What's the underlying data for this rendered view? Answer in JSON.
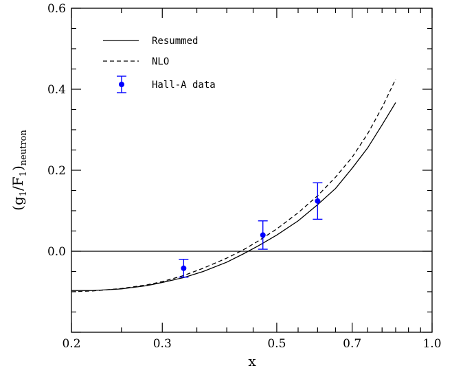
{
  "chart_data": {
    "type": "line",
    "xlabel": "x",
    "ylabel": "(g1/F1)neutron",
    "ylabel_parts": {
      "open": "(g",
      "sub1": "1",
      "slash": "/F",
      "sub2": "1",
      "close": ")",
      "sub3": "neutron"
    },
    "xscale": "log",
    "xlim": [
      0.2,
      1.0
    ],
    "ylim": [
      -0.2,
      0.6
    ],
    "x_ticks": [
      {
        "value": 0.2,
        "label": "0.2"
      },
      {
        "value": 0.3,
        "label": "0.3"
      },
      {
        "value": 0.5,
        "label": "0.5"
      },
      {
        "value": 0.7,
        "label": "0.7"
      },
      {
        "value": 1.0,
        "label": "1.0"
      }
    ],
    "y_ticks": [
      {
        "value": 0.0,
        "label": "0.0"
      },
      {
        "value": 0.2,
        "label": "0.2"
      },
      {
        "value": 0.4,
        "label": "0.4"
      },
      {
        "value": 0.6,
        "label": "0.6"
      }
    ],
    "reference_line": {
      "y": 0.0
    },
    "series": [
      {
        "name": "Resummed",
        "style": "solid",
        "color": "#000000",
        "x": [
          0.2,
          0.22,
          0.25,
          0.28,
          0.3,
          0.33,
          0.36,
          0.4,
          0.43,
          0.46,
          0.5,
          0.55,
          0.6,
          0.65,
          0.7,
          0.75,
          0.8,
          0.85
        ],
        "y": [
          -0.097,
          -0.097,
          -0.093,
          -0.085,
          -0.077,
          -0.065,
          -0.05,
          -0.027,
          -0.007,
          0.013,
          0.04,
          0.075,
          0.115,
          0.155,
          0.205,
          0.255,
          0.312,
          0.367
        ]
      },
      {
        "name": "NLO",
        "style": "dashed",
        "color": "#000000",
        "x": [
          0.2,
          0.22,
          0.25,
          0.28,
          0.3,
          0.33,
          0.36,
          0.4,
          0.43,
          0.46,
          0.5,
          0.55,
          0.6,
          0.65,
          0.7,
          0.75,
          0.8,
          0.85
        ],
        "y": [
          -0.1,
          -0.098,
          -0.092,
          -0.083,
          -0.075,
          -0.06,
          -0.042,
          -0.017,
          0.003,
          0.025,
          0.055,
          0.095,
          0.137,
          0.183,
          0.232,
          0.29,
          0.355,
          0.425
        ]
      }
    ],
    "data_points": {
      "name": "Hall-A data",
      "color": "#0000ff",
      "points": [
        {
          "x": 0.33,
          "y": -0.042,
          "err": 0.022
        },
        {
          "x": 0.47,
          "y": 0.04,
          "err": 0.035
        },
        {
          "x": 0.6,
          "y": 0.124,
          "err": 0.045
        }
      ]
    },
    "legend": {
      "placement": "top-left",
      "entries": [
        {
          "label": "Resummed",
          "kind": "solid"
        },
        {
          "label": "NLO",
          "kind": "dashed"
        },
        {
          "label": "Hall-A data",
          "kind": "point"
        }
      ]
    }
  }
}
